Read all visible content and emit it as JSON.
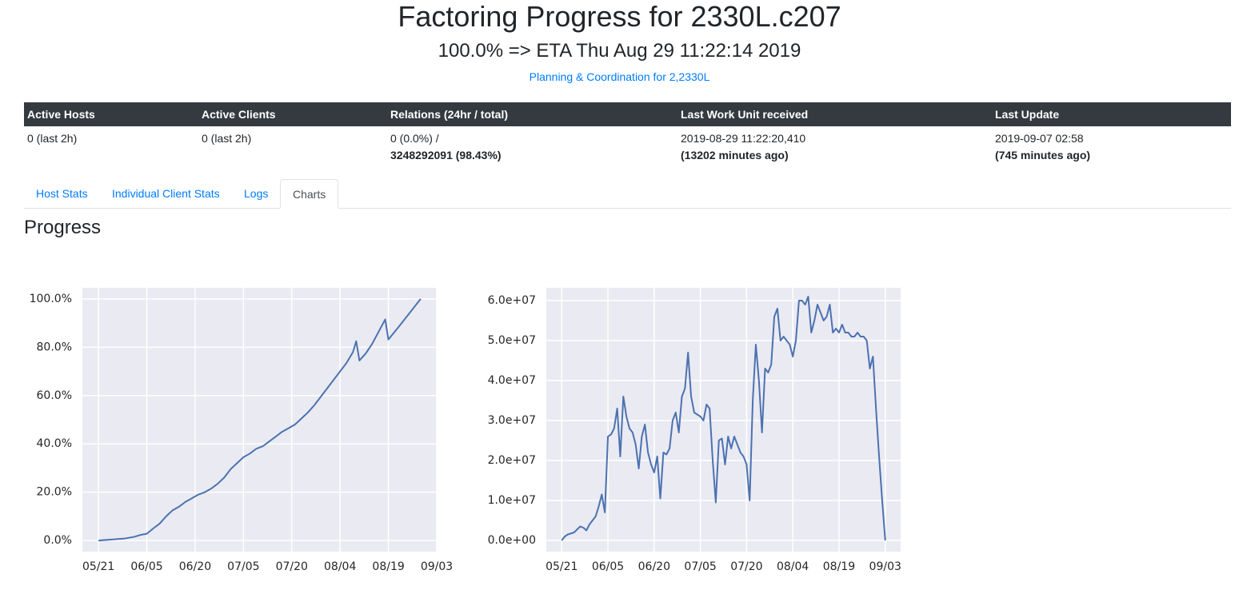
{
  "header": {
    "title": "Factoring Progress for 2330L.c207",
    "subtitle": "100.0% => ETA Thu Aug 29 11:22:14 2019",
    "link": "Planning & Coordination for 2,2330L"
  },
  "table": {
    "columns": [
      "Active Hosts",
      "Active Clients",
      "Relations (24hr / total)",
      "Last Work Unit received",
      "Last Update"
    ],
    "rows": [
      [
        [
          "0 (last 2h)"
        ],
        [
          "0 (last 2h)"
        ],
        [
          "0 (0.0%) /",
          "3248292091 (98.43%)"
        ],
        [
          "2019-08-29 11:22:20,410",
          "(13202 minutes ago)"
        ],
        [
          "2019-09-07 02:58",
          "(745 minutes ago)"
        ]
      ]
    ]
  },
  "tabs": {
    "items": [
      "Host Stats",
      "Individual Client Stats",
      "Logs",
      "Charts"
    ],
    "active": 3
  },
  "section": {
    "title": "Progress"
  },
  "chart_data": [
    {
      "type": "line",
      "color": "#4c72b0",
      "grid": true,
      "x": [
        "05/21",
        "05/25",
        "05/29",
        "06/01",
        "06/03",
        "06/05",
        "06/07",
        "06/09",
        "06/11",
        "06/13",
        "06/15",
        "06/17",
        "06/19",
        "06/21",
        "06/23",
        "06/25",
        "06/27",
        "06/29",
        "07/01",
        "07/03",
        "07/05",
        "07/07",
        "07/09",
        "07/11",
        "07/13",
        "07/15",
        "07/17",
        "07/19",
        "07/21",
        "07/23",
        "07/25",
        "07/27",
        "07/29",
        "07/31",
        "08/02",
        "08/04",
        "08/06",
        "08/08",
        "08/09",
        "08/10",
        "08/12",
        "08/14",
        "08/16",
        "08/18",
        "08/19",
        "08/21",
        "08/23",
        "08/25",
        "08/27",
        "08/29"
      ],
      "values": [
        0,
        0.4,
        0.8,
        1.5,
        2.3,
        2.8,
        5,
        7,
        10,
        12.5,
        14,
        16,
        17.5,
        19,
        20,
        21.5,
        23.5,
        26,
        29.5,
        32,
        34.5,
        36,
        38,
        39,
        41,
        43,
        45,
        46.5,
        48,
        50.5,
        53,
        56,
        59.5,
        63,
        66.5,
        70,
        73.5,
        78,
        82.5,
        74.5,
        77.5,
        81.5,
        86.5,
        91.5,
        83.2,
        86.5,
        89.8,
        93.2,
        96.6,
        100
      ],
      "xlim": [
        "05/16",
        "09/03"
      ],
      "xticks": [
        "05/21",
        "06/05",
        "06/20",
        "07/05",
        "07/20",
        "08/04",
        "08/19",
        "09/03"
      ],
      "ylim": [
        -4.6,
        104.6
      ],
      "yticks": [
        {
          "value": 0,
          "label": "0.0%"
        },
        {
          "value": 20,
          "label": "20.0%"
        },
        {
          "value": 40,
          "label": "40.0%"
        },
        {
          "value": 60,
          "label": "60.0%"
        },
        {
          "value": 80,
          "label": "80.0%"
        },
        {
          "value": 100,
          "label": "100.0%"
        }
      ]
    },
    {
      "type": "line",
      "color": "#4c72b0",
      "grid": true,
      "x": [
        "05/21",
        "05/22",
        "05/23",
        "05/25",
        "05/27",
        "05/28",
        "05/29",
        "05/30",
        "06/01",
        "06/02",
        "06/03",
        "06/04",
        "06/05",
        "06/06",
        "06/07",
        "06/08",
        "06/09",
        "06/10",
        "06/11",
        "06/12",
        "06/13",
        "06/14",
        "06/15",
        "06/16",
        "06/17",
        "06/18",
        "06/19",
        "06/20",
        "06/21",
        "06/22",
        "06/23",
        "06/24",
        "06/25",
        "06/26",
        "06/27",
        "06/28",
        "06/29",
        "06/30",
        "07/01",
        "07/02",
        "07/03",
        "07/05",
        "07/06",
        "07/07",
        "07/08",
        "07/09",
        "07/10",
        "07/11",
        "07/12",
        "07/13",
        "07/14",
        "07/15",
        "07/16",
        "07/17",
        "07/18",
        "07/19",
        "07/20",
        "07/21",
        "07/22",
        "07/23",
        "07/24",
        "07/25",
        "07/26",
        "07/27",
        "07/28",
        "07/29",
        "07/30",
        "07/31",
        "08/01",
        "08/02",
        "08/03",
        "08/04",
        "08/05",
        "08/06",
        "08/07",
        "08/08",
        "08/09",
        "08/10",
        "08/11",
        "08/12",
        "08/13",
        "08/14",
        "08/15",
        "08/16",
        "08/17",
        "08/18",
        "08/19",
        "08/20",
        "08/21",
        "08/22",
        "08/23",
        "08/24",
        "08/25",
        "08/26",
        "08/27",
        "08/28",
        "08/29",
        "08/30",
        "08/31",
        "09/01",
        "09/02",
        "09/03"
      ],
      "values": [
        0,
        1000000,
        1500000,
        2000000,
        3500000,
        3200000,
        2500000,
        4000000,
        6000000,
        8500000,
        11500000,
        7000000,
        26000000,
        26500000,
        28000000,
        33000000,
        21000000,
        36000000,
        31000000,
        28000000,
        27000000,
        24000000,
        18000000,
        26000000,
        29000000,
        22000000,
        19000000,
        17000000,
        21000000,
        10500000,
        22000000,
        21500000,
        23000000,
        30000000,
        32000000,
        27000000,
        36000000,
        38000000,
        47000000,
        36000000,
        32000000,
        31000000,
        30000000,
        34000000,
        33000000,
        20000000,
        9500000,
        25000000,
        25500000,
        19000000,
        26000000,
        23000000,
        26000000,
        24000000,
        22000000,
        21000000,
        19000000,
        10000000,
        35000000,
        49000000,
        40000000,
        27000000,
        43000000,
        42000000,
        44000000,
        56000000,
        58000000,
        50000000,
        51000000,
        50000000,
        49000000,
        46000000,
        50000000,
        60000000,
        60000000,
        59000000,
        61000000,
        52000000,
        55000000,
        59000000,
        57000000,
        55000000,
        56000000,
        59000000,
        52000000,
        53000000,
        52000000,
        54000000,
        52000000,
        52000000,
        51000000,
        51000000,
        52000000,
        51000000,
        51000000,
        50000000,
        43000000,
        46000000,
        33000000,
        21000000,
        10000000,
        0
      ],
      "xlim": [
        "05/16",
        "09/08"
      ],
      "xticks": [
        "05/21",
        "06/05",
        "06/20",
        "07/05",
        "07/20",
        "08/04",
        "08/19",
        "09/03"
      ],
      "ylim": [
        -2800000,
        63200000
      ],
      "yticks": [
        {
          "value": 0,
          "label": "0.0e+00"
        },
        {
          "value": 10000000,
          "label": "1.0e+07"
        },
        {
          "value": 20000000,
          "label": "2.0e+07"
        },
        {
          "value": 30000000,
          "label": "3.0e+07"
        },
        {
          "value": 40000000,
          "label": "4.0e+07"
        },
        {
          "value": 50000000,
          "label": "5.0e+07"
        },
        {
          "value": 60000000,
          "label": "6.0e+07"
        }
      ]
    }
  ]
}
